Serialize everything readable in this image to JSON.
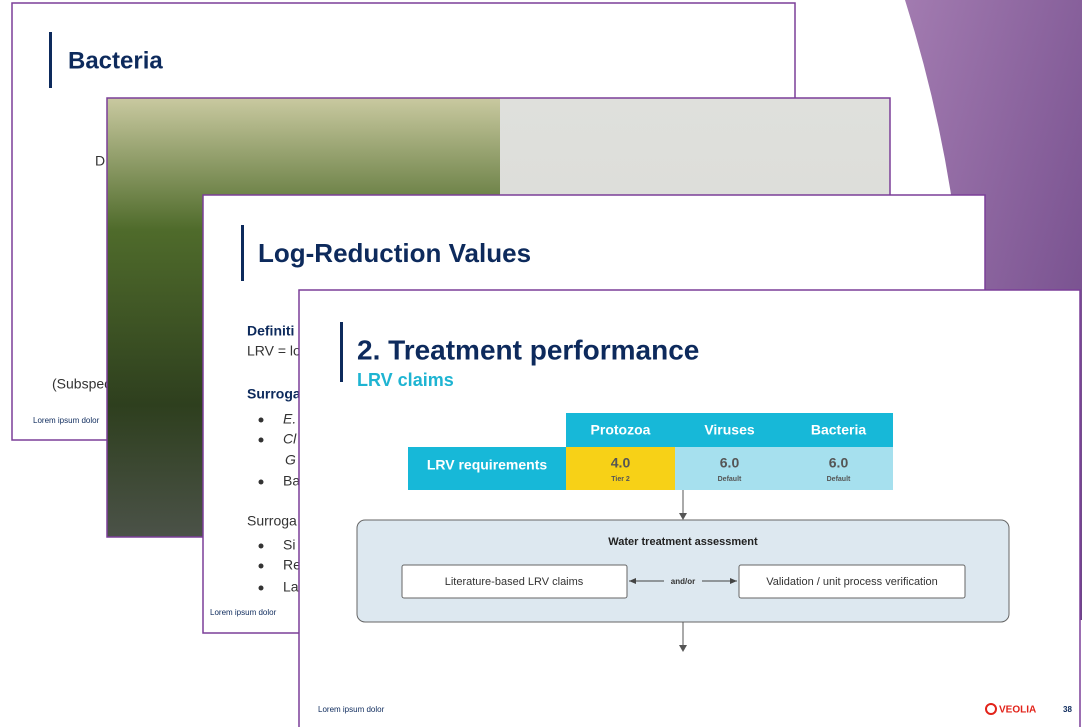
{
  "bacteria_slide": {
    "title": "Bacteria",
    "fragments": [
      "D",
      "(Subspec"
    ],
    "footer": "Lorem ipsum dolor"
  },
  "lrv_slide": {
    "title": "Log-Reduction Values",
    "definition_heading": "Definiti",
    "definition_text": "LRV = lo",
    "surrogates_heading_1": "Surroga",
    "bullets_1": [
      "E.",
      "Cl",
      "G",
      "Ba"
    ],
    "surrogates_heading_2": "Surroga",
    "bullets_2": [
      "Si",
      "Re",
      "La"
    ],
    "footer": "Lorem ipsum dolor"
  },
  "treatment_slide": {
    "title": "2. Treatment performance",
    "subtitle": "LRV claims",
    "table": {
      "columns": [
        "Protozoa",
        "Viruses",
        "Bacteria"
      ],
      "row_label": "LRV requirements",
      "cells": [
        {
          "value": "4.0",
          "note": "Tier 2"
        },
        {
          "value": "6.0",
          "note": "Default"
        },
        {
          "value": "6.0",
          "note": "Default"
        }
      ]
    },
    "assessment": {
      "title": "Water treatment assessment",
      "left": "Literature-based LRV claims",
      "connector": "and/or",
      "right": "Validation / unit process verification"
    },
    "footer": "Lorem ipsum dolor",
    "logo": "VEOLIA",
    "page_number": "38"
  }
}
